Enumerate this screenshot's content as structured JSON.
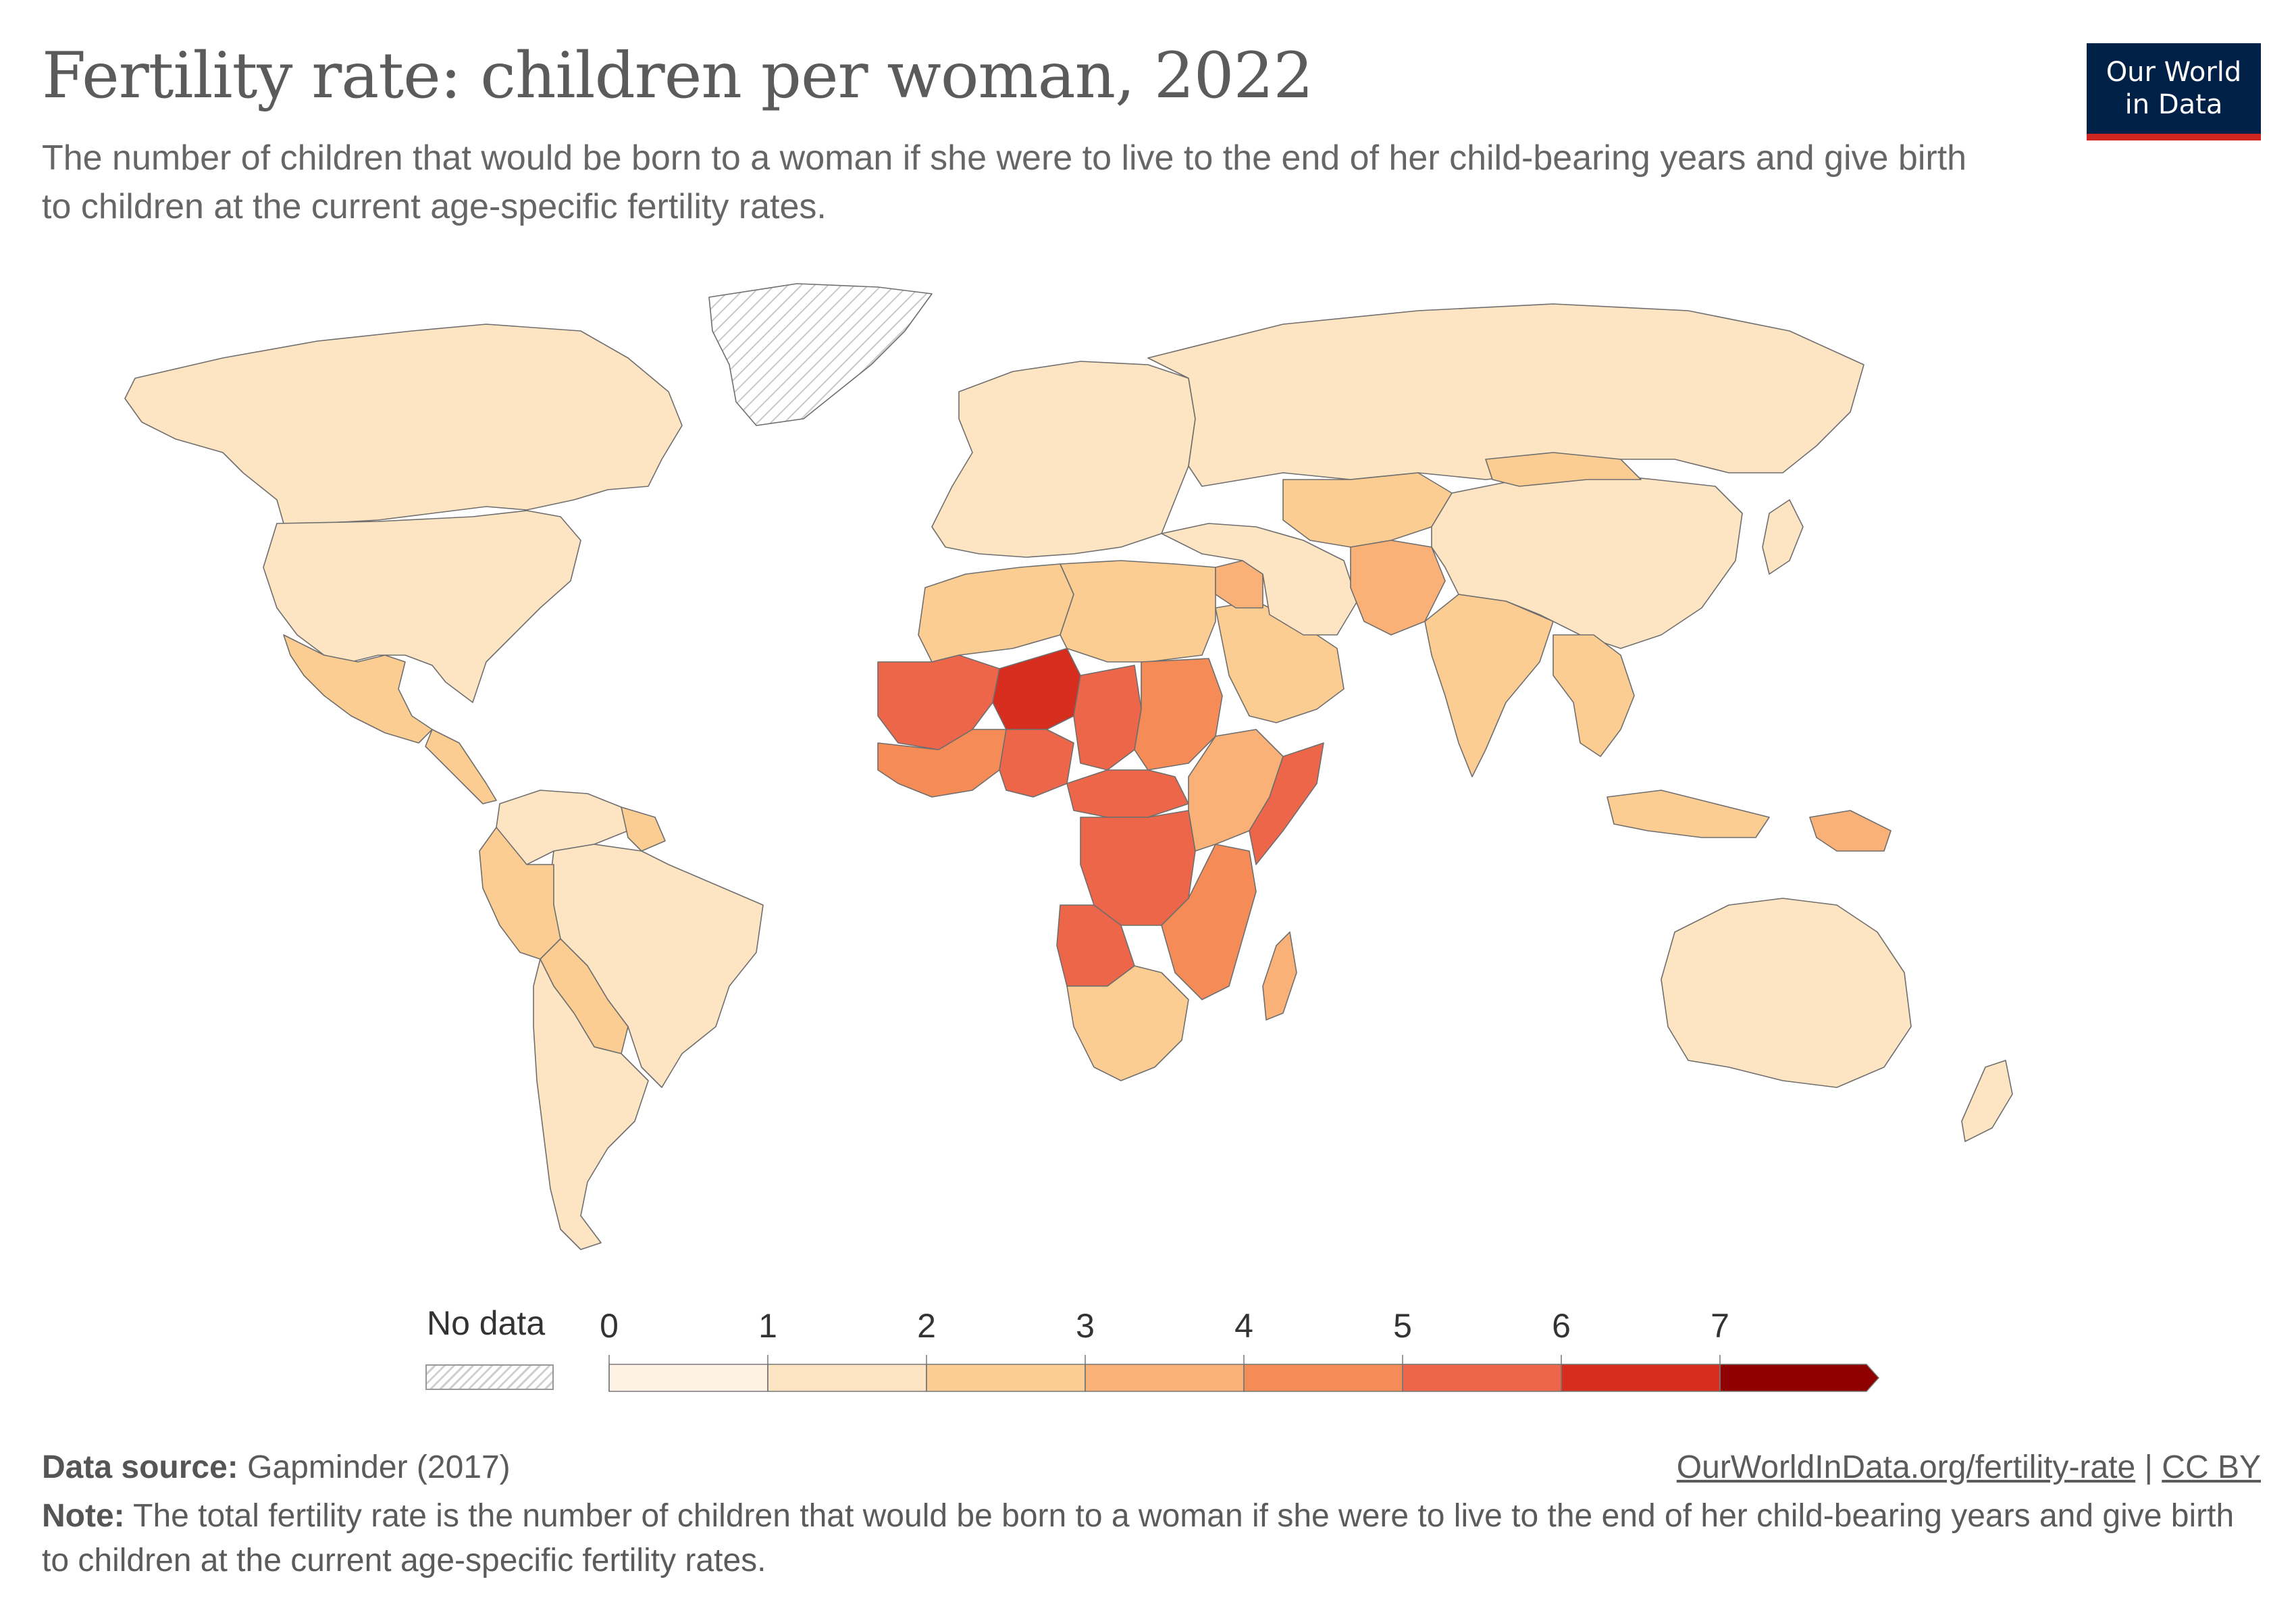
{
  "header": {
    "title": "Fertility rate: children per woman, 2022",
    "subtitle": "The number of children that would be born to a woman if she were to live to the end of her child-bearing years and give birth to children at the current age-specific fertility rates.",
    "logo_line1": "Our World",
    "logo_line2": "in Data"
  },
  "legend": {
    "no_data_label": "No data",
    "ticks": [
      "0",
      "1",
      "2",
      "3",
      "4",
      "5",
      "6",
      "7"
    ],
    "bins": [
      {
        "from": 0,
        "to": 1,
        "color": "#fef3e3"
      },
      {
        "from": 1,
        "to": 2,
        "color": "#fde4c3"
      },
      {
        "from": 2,
        "to": 3,
        "color": "#fbcd93"
      },
      {
        "from": 3,
        "to": 4,
        "color": "#f9b178"
      },
      {
        "from": 4,
        "to": 5,
        "color": "#f58c58"
      },
      {
        "from": 5,
        "to": 6,
        "color": "#ed6649"
      },
      {
        "from": 6,
        "to": 7,
        "color": "#d62d1e"
      },
      {
        "from": 7,
        "to": null,
        "color": "#8f0000"
      }
    ],
    "no_data_color": "hatched"
  },
  "footer": {
    "source_label": "Data source:",
    "source_value": "Gapminder (2017)",
    "link_text": "OurWorldInData.org/fertility-rate",
    "link_separator": "|",
    "license": "CC BY",
    "note_label": "Note:",
    "note_text": "The total fertility rate is the number of children that would be born to a woman if she were to live to the end of her child-bearing years and give birth to children at the current age-specific fertility rates."
  },
  "map_regions": [
    {
      "name": "Canada",
      "value": 1.5
    },
    {
      "name": "United States",
      "value": 1.7
    },
    {
      "name": "Mexico",
      "value": 2.1
    },
    {
      "name": "Central America",
      "value": 2.3
    },
    {
      "name": "Greenland",
      "value": null
    },
    {
      "name": "Colombia-Venezuela",
      "value": 1.8
    },
    {
      "name": "Brazil",
      "value": 1.6
    },
    {
      "name": "Peru-Ecuador",
      "value": 2.2
    },
    {
      "name": "Bolivia-Paraguay",
      "value": 2.5
    },
    {
      "name": "Argentina-Chile",
      "value": 1.9
    },
    {
      "name": "Guianas",
      "value": 2.4
    },
    {
      "name": "Europe",
      "value": 1.5
    },
    {
      "name": "Russia",
      "value": 1.5
    },
    {
      "name": "Maghreb",
      "value": 2.4
    },
    {
      "name": "Egypt-Libya",
      "value": 2.7
    },
    {
      "name": "Mauritania-Mali",
      "value": 5.3
    },
    {
      "name": "Niger",
      "value": 6.7
    },
    {
      "name": "Chad",
      "value": 5.6
    },
    {
      "name": "Sudan",
      "value": 4.3
    },
    {
      "name": "West Africa",
      "value": 4.5
    },
    {
      "name": "Nigeria",
      "value": 5.1
    },
    {
      "name": "Central Africa",
      "value": 5.5
    },
    {
      "name": "DR Congo",
      "value": 5.7
    },
    {
      "name": "Angola",
      "value": 5.2
    },
    {
      "name": "East Africa",
      "value": 3.9
    },
    {
      "name": "Somalia",
      "value": 5.9
    },
    {
      "name": "Tanzania-Mozambique",
      "value": 4.6
    },
    {
      "name": "Southern Africa",
      "value": 2.3
    },
    {
      "name": "Madagascar",
      "value": 3.8
    },
    {
      "name": "Arabian Peninsula",
      "value": 2.6
    },
    {
      "name": "Iraq",
      "value": 3.4
    },
    {
      "name": "Iran-Turkey",
      "value": 1.8
    },
    {
      "name": "Central Asia",
      "value": 2.8
    },
    {
      "name": "Afghanistan-Pakistan",
      "value": 3.6
    },
    {
      "name": "India",
      "value": 2.1
    },
    {
      "name": "China",
      "value": 1.2
    },
    {
      "name": "Mongolia",
      "value": 2.6
    },
    {
      "name": "Southeast Asia",
      "value": 2.1
    },
    {
      "name": "Japan-Korea",
      "value": 1.1
    },
    {
      "name": "Indonesia",
      "value": 2.2
    },
    {
      "name": "Papua New Guinea",
      "value": 3.5
    },
    {
      "name": "Australia",
      "value": 1.6
    },
    {
      "name": "New Zealand",
      "value": 1.7
    }
  ]
}
